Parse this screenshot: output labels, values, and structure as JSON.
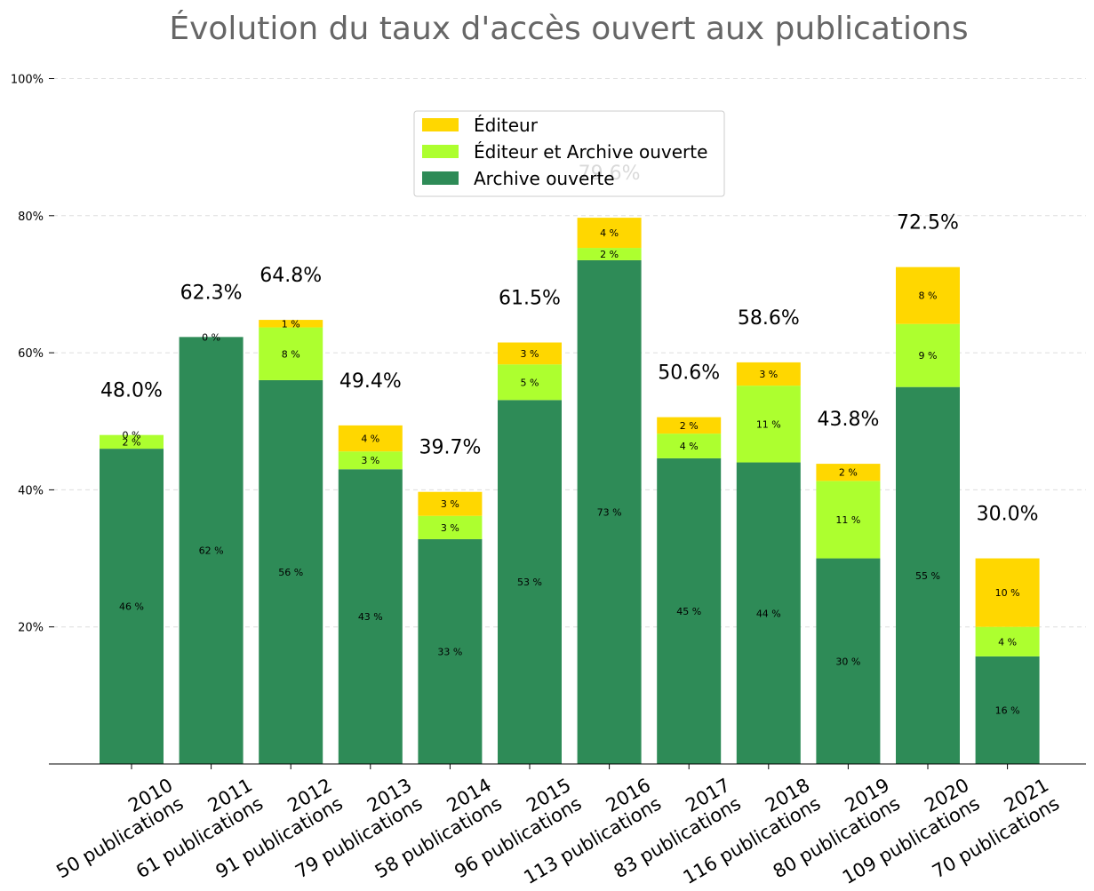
{
  "chart_data": {
    "type": "bar",
    "stacked": true,
    "title": "Évolution du taux d'accès ouvert aux publications",
    "xlabel": "",
    "ylabel": "",
    "ylim": [
      0,
      100
    ],
    "yticks": [
      20,
      40,
      60,
      80,
      100
    ],
    "ytick_labels": [
      "20%",
      "40%",
      "60%",
      "80%",
      "100%"
    ],
    "grid": "y dashed",
    "legend_position": "top-center",
    "categories": [
      {
        "year": "2010",
        "sub": "50 publications"
      },
      {
        "year": "2011",
        "sub": "61 publications"
      },
      {
        "year": "2012",
        "sub": "91 publications"
      },
      {
        "year": "2013",
        "sub": "79 publications"
      },
      {
        "year": "2014",
        "sub": "58 publications"
      },
      {
        "year": "2015",
        "sub": "96 publications"
      },
      {
        "year": "2016",
        "sub": "113 publications"
      },
      {
        "year": "2017",
        "sub": "83 publications"
      },
      {
        "year": "2018",
        "sub": "116 publications"
      },
      {
        "year": "2019",
        "sub": "80 publications"
      },
      {
        "year": "2020",
        "sub": "109 publications"
      },
      {
        "year": "2021",
        "sub": "70 publications"
      }
    ],
    "series": [
      {
        "name": "Archive ouverte",
        "color": "#2e8b57",
        "values": [
          46.0,
          62.3,
          56.0,
          43.0,
          32.8,
          53.1,
          73.5,
          44.6,
          44.0,
          30.0,
          55.0,
          15.7
        ],
        "labels": [
          "46 %",
          "62 %",
          "56 %",
          "43 %",
          "33 %",
          "53 %",
          "73 %",
          "45 %",
          "44 %",
          "30 %",
          "55 %",
          "16 %"
        ]
      },
      {
        "name": "Éditeur et Archive ouverte",
        "color": "#adff2f",
        "values": [
          2.0,
          0.0,
          7.7,
          2.6,
          3.4,
          5.2,
          1.8,
          3.6,
          11.2,
          11.3,
          9.2,
          4.3
        ],
        "labels": [
          "2 %",
          "",
          "8 %",
          "3 %",
          "3 %",
          "5 %",
          "2 %",
          "4 %",
          "11 %",
          "11 %",
          "9 %",
          "4 %"
        ]
      },
      {
        "name": "Éditeur",
        "color": "#ffd700",
        "values": [
          0.0,
          0.0,
          1.1,
          3.8,
          3.5,
          3.2,
          4.4,
          2.4,
          3.4,
          2.5,
          8.3,
          10.0
        ],
        "labels": [
          "0 %",
          "0 %",
          "1 %",
          "4 %",
          "3 %",
          "3 %",
          "4 %",
          "2 %",
          "3 %",
          "2 %",
          "8 %",
          "10 %"
        ]
      }
    ],
    "totals": [
      "48.0%",
      "62.3%",
      "64.8%",
      "49.4%",
      "39.7%",
      "61.5%",
      "79.6%",
      "50.6%",
      "58.6%",
      "43.8%",
      "72.5%",
      "30.0%"
    ],
    "legend": [
      "Éditeur",
      "Éditeur et Archive ouverte",
      "Archive ouverte"
    ]
  }
}
